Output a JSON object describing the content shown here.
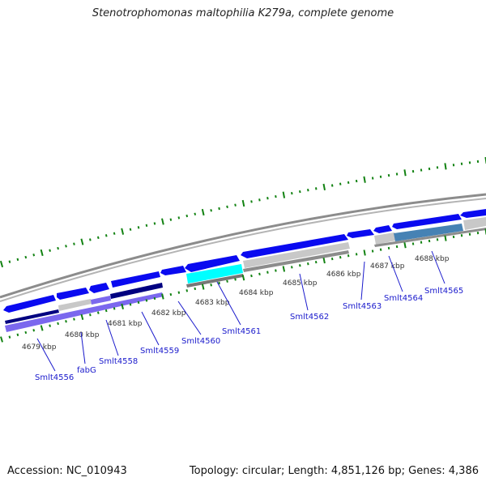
{
  "title": "Stenotrophomonas maltophilia K279a, complete genome",
  "footer": {
    "accession": "Accession: NC_010943",
    "summary": "Topology: circular; Length: 4,851,126 bp; Genes: 4,386"
  },
  "colors": {
    "backbone": "#8c8c8c",
    "cds": "#0a0af0",
    "cds_dark": "#000080",
    "gene_light": "#c8c8c8",
    "highlight": "#00ffff",
    "other_feature": "#7b68ee",
    "steelblue": "#4682b4",
    "ticks": "#128212",
    "label_text": "#1a1acc"
  },
  "kbp_labels": [
    "4679 kbp",
    "4680 kbp",
    "4681 kbp",
    "4682 kbp",
    "4683 kbp",
    "4684 kbp",
    "4685 kbp",
    "4686 kbp",
    "4687 kbp",
    "4688 kbp"
  ],
  "gene_labels": [
    "Smlt4556",
    "fabG",
    "Smlt4558",
    "Smlt4559",
    "Smlt4560",
    "Smlt4561",
    "Smlt4562",
    "Smlt4563",
    "Smlt4564",
    "Smlt4565"
  ]
}
